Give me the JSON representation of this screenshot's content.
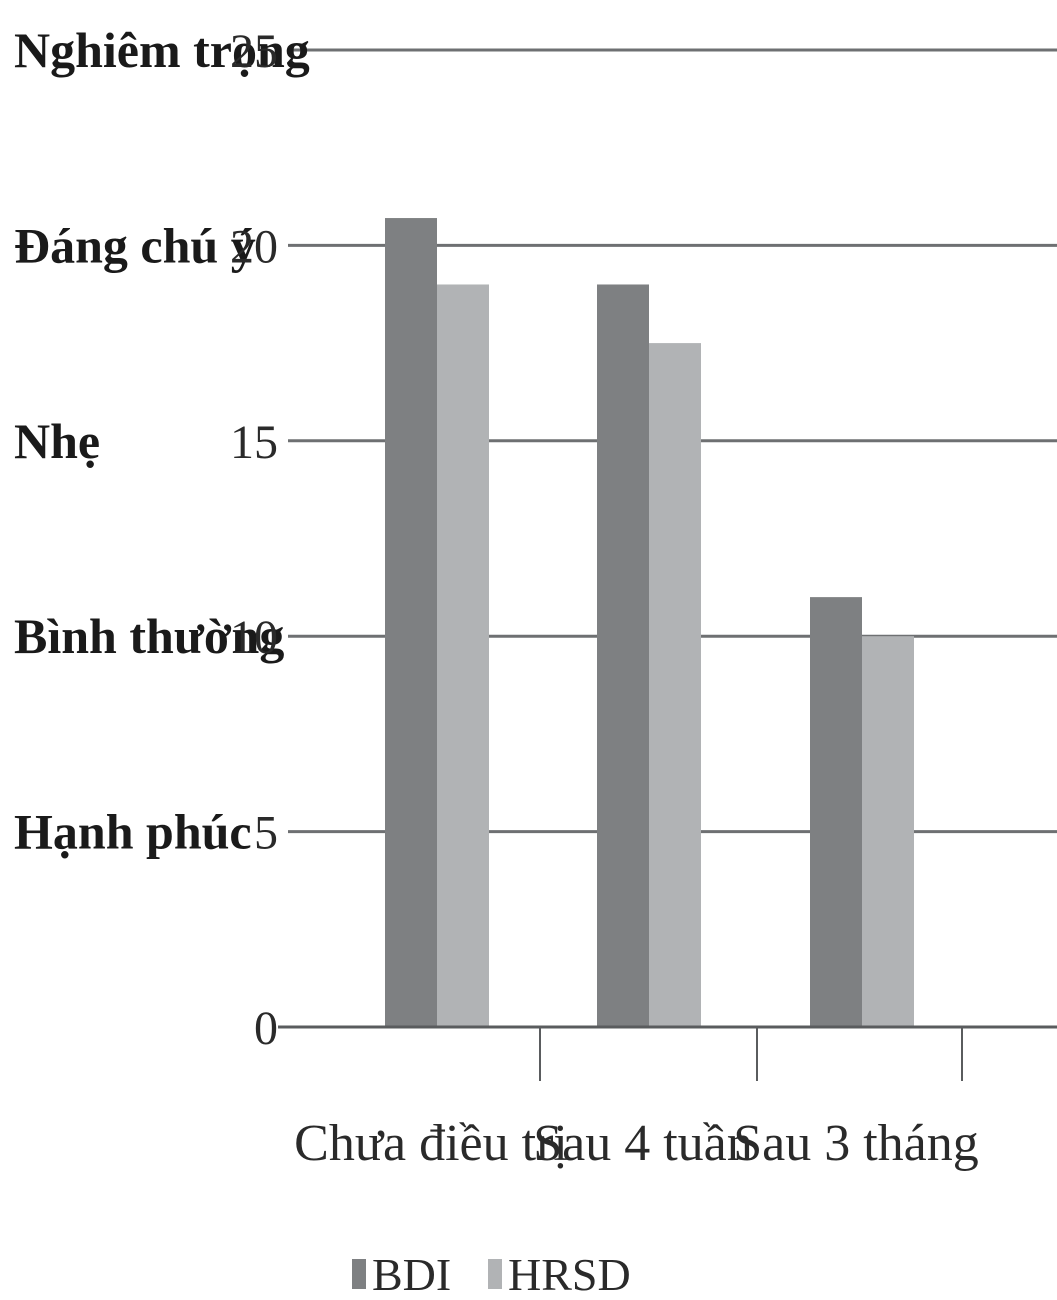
{
  "chart_data": {
    "type": "bar",
    "categories": [
      "Chưa điều trị",
      "Sau 4 tuần",
      "Sau 3 tháng"
    ],
    "series": [
      {
        "name": "BDI",
        "values": [
          20.7,
          19.0,
          11.0
        ],
        "color": "#7e8082"
      },
      {
        "name": "HRSD",
        "values": [
          19.0,
          17.5,
          10.0
        ],
        "color": "#b1b3b5"
      }
    ],
    "ylim": [
      0,
      25
    ],
    "yticks": [
      "0",
      "5",
      "10",
      "15",
      "20",
      "25"
    ],
    "severity_labels": [
      {
        "label": "Nghiêm trọng",
        "value": 25
      },
      {
        "label": "Đáng chú ý",
        "value": 20
      },
      {
        "label": "Nhẹ",
        "value": 15
      },
      {
        "label": "Bình thường",
        "value": 10
      },
      {
        "label": "Hạnh phúc",
        "value": 5
      }
    ],
    "grid": true,
    "legend_position": "bottom-left",
    "grid_color": "#6e7072",
    "axis_color": "#5a5c5e"
  }
}
